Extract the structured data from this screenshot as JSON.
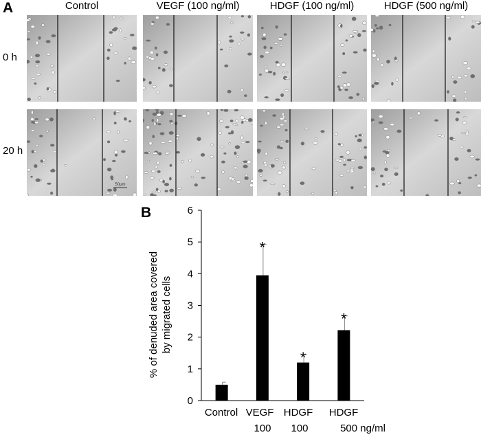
{
  "figure": {
    "panel_a": "A",
    "panel_b": "B",
    "columns": [
      "Control",
      "VEGF (100 ng/ml)",
      "HDGF (100 ng/ml)",
      "HDGF (500 ng/ml)"
    ],
    "rows": [
      "0 h",
      "20 h"
    ],
    "scale_bar_label": "50μm"
  },
  "chart_data": {
    "type": "bar",
    "title": "",
    "ylabel_line1": "% of denuded area covered",
    "ylabel_line2": "by migrated cells",
    "ylim": [
      0,
      6
    ],
    "yticks": [
      "0",
      "1",
      "2",
      "3",
      "4",
      "5",
      "6"
    ],
    "categories": [
      "Control",
      "VEGF",
      "HDGF",
      "HDGF"
    ],
    "sub_labels": [
      "",
      "100",
      "100",
      "500 ng/ml"
    ],
    "values": [
      0.5,
      3.95,
      1.2,
      2.22
    ],
    "errors": [
      0.08,
      0.98,
      0.25,
      0.45
    ],
    "significance": [
      "",
      "*",
      "*",
      "*"
    ],
    "bar_color": "#000000"
  }
}
